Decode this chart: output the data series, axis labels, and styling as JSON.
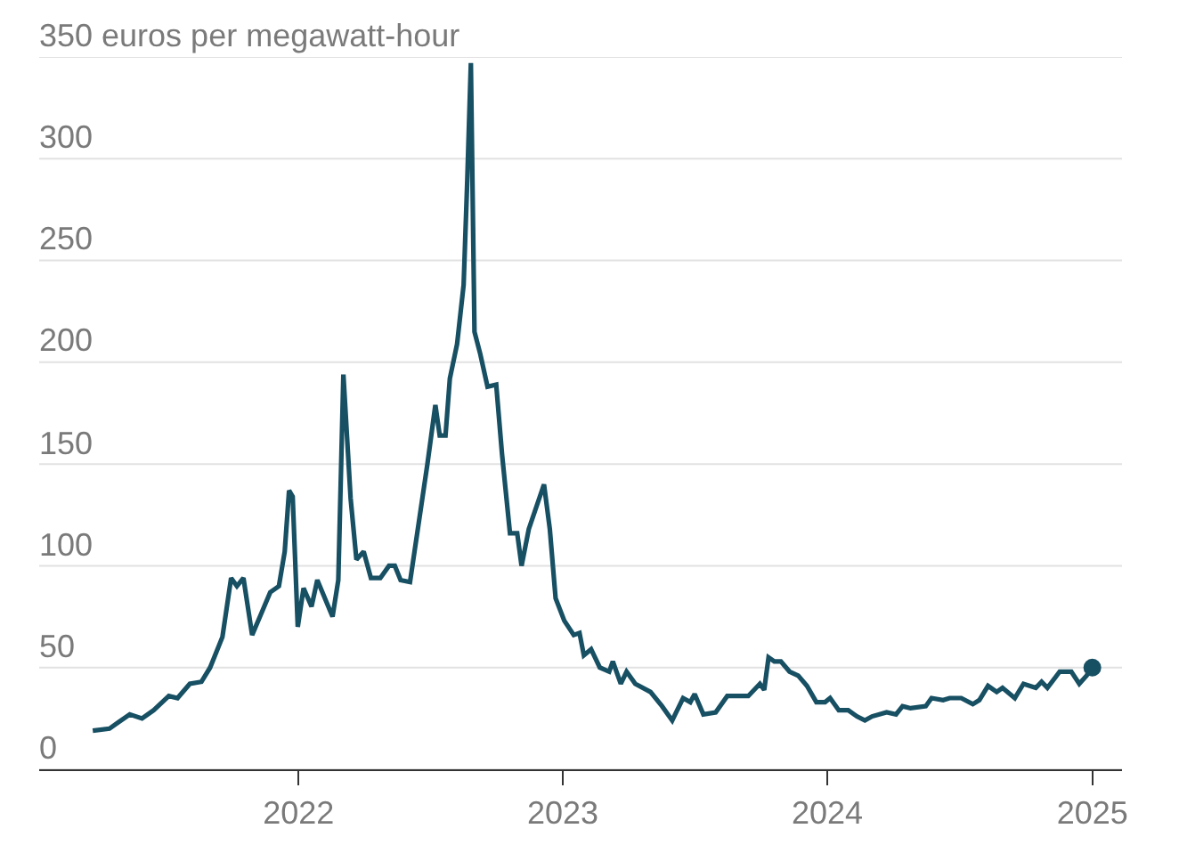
{
  "chart_data": {
    "type": "line",
    "xlim": [
      "2021-01-08",
      "2025-02-11"
    ],
    "xticks": [
      "2022",
      "2023",
      "2024",
      "2025"
    ],
    "ylim": [
      0,
      350
    ],
    "yticks": [
      0,
      50,
      100,
      150,
      200,
      250,
      300,
      {
        "value": 350,
        "label": "350 euros per megawatt-hour"
      }
    ],
    "grid": "y",
    "line_style": "solid",
    "series": [
      {
        "color": "#174f63",
        "x": [
          "2021-03-23",
          "2021-04-15",
          "2021-04-27",
          "2021-05-13",
          "2021-05-30",
          "2021-06-15",
          "2021-07-06",
          "2021-07-18",
          "2021-08-04",
          "2021-08-20",
          "2021-09-01",
          "2021-09-18",
          "2021-09-30",
          "2021-10-08",
          "2021-10-17",
          "2021-10-29",
          "2021-11-10",
          "2021-11-23",
          "2021-12-05",
          "2021-12-13",
          "2021-12-19",
          "2021-12-24",
          "2021-12-31",
          "2022-01-08",
          "2022-01-19",
          "2022-01-27",
          "2022-02-17",
          "2022-02-25",
          "2022-03-04",
          "2022-03-14",
          "2022-03-22",
          "2022-04-01",
          "2022-04-11",
          "2022-04-24",
          "2022-05-06",
          "2022-05-14",
          "2022-05-22",
          "2022-06-04",
          "2022-06-16",
          "2022-06-28",
          "2022-07-09",
          "2022-07-15",
          "2022-07-23",
          "2022-07-29",
          "2022-08-08",
          "2022-08-17",
          "2022-08-22",
          "2022-08-27",
          "2022-09-01",
          "2022-09-09",
          "2022-09-19",
          "2022-10-01",
          "2022-10-09",
          "2022-10-20",
          "2022-10-30",
          "2022-11-05",
          "2022-11-15",
          "2022-12-06",
          "2022-12-14",
          "2022-12-22",
          "2023-01-03",
          "2023-01-16",
          "2023-01-24",
          "2023-01-30",
          "2023-02-09",
          "2023-02-21",
          "2023-03-06",
          "2023-03-11",
          "2023-03-22",
          "2023-03-30",
          "2023-04-11",
          "2023-05-02",
          "2023-05-18",
          "2023-06-01",
          "2023-06-16",
          "2023-06-26",
          "2023-07-02",
          "2023-07-14",
          "2023-07-31",
          "2023-08-16",
          "2023-09-01",
          "2023-09-14",
          "2023-09-30",
          "2023-10-06",
          "2023-10-12",
          "2023-10-20",
          "2023-10-29",
          "2023-11-10",
          "2023-11-22",
          "2023-12-04",
          "2023-12-17",
          "2023-12-29",
          "2024-01-05",
          "2024-01-17",
          "2024-01-30",
          "2024-02-11",
          "2024-02-22",
          "2024-03-03",
          "2024-03-23",
          "2024-04-05",
          "2024-04-14",
          "2024-04-25",
          "2024-05-16",
          "2024-05-24",
          "2024-06-09",
          "2024-06-18",
          "2024-07-04",
          "2024-07-20",
          "2024-07-29",
          "2024-08-10",
          "2024-08-22",
          "2024-08-30",
          "2024-09-16",
          "2024-09-28",
          "2024-10-15",
          "2024-10-23",
          "2024-10-31",
          "2024-11-17",
          "2024-12-03",
          "2024-12-14",
          "2024-12-24",
          "2025-01-01"
        ],
        "values": [
          19,
          20,
          23,
          27,
          25,
          29,
          36,
          35,
          42,
          43,
          50,
          65,
          94,
          90,
          94,
          66,
          76,
          87,
          90,
          107,
          137,
          134,
          70,
          89,
          80,
          93,
          75,
          93,
          194,
          133,
          103,
          107,
          94,
          94,
          100,
          100,
          93,
          92,
          121,
          150,
          179,
          164,
          164,
          192,
          209,
          238,
          289,
          347,
          215,
          204,
          188,
          189,
          155,
          116,
          116,
          100,
          118,
          140,
          118,
          84,
          73,
          66,
          67,
          56,
          59,
          50,
          48,
          53,
          42,
          48,
          42,
          38,
          31,
          24,
          35,
          33,
          37,
          27,
          28,
          36,
          36,
          36,
          42,
          39,
          55,
          53,
          53,
          48,
          46,
          41,
          33,
          33,
          35,
          29,
          29,
          26,
          24,
          26,
          28,
          27,
          31,
          30,
          31,
          35,
          34,
          35,
          35,
          32,
          34,
          41,
          38,
          40,
          35,
          42,
          40,
          43,
          40,
          48,
          48,
          42,
          46,
          50
        ]
      },
      {
        "type": "scatter",
        "color": "#174f63",
        "x": [
          "2025-01-01"
        ],
        "values": [
          50
        ]
      }
    ]
  }
}
